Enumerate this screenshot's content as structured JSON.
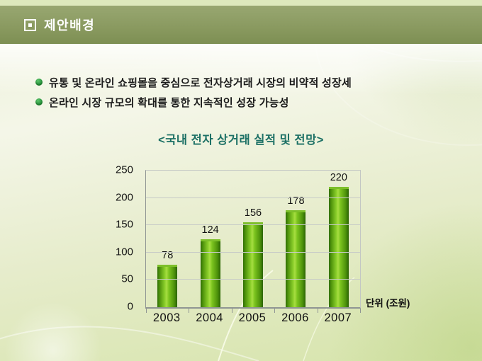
{
  "header": {
    "title": "제안배경"
  },
  "bullets": [
    "유통 및 온라인 쇼핑몰을 중심으로 전자상거래 시장의 비약적 성장세",
    "온라인 시장 규모의 확대를 통한 지속적인 성장 가능성"
  ],
  "chart_data": {
    "type": "bar",
    "title": "<국내 전자 상거래 실적 및 전망>",
    "categories": [
      "2003",
      "2004",
      "2005",
      "2006",
      "2007"
    ],
    "values": [
      78,
      124,
      156,
      178,
      220
    ],
    "unit_label": "단위 (조원)",
    "xlabel": "",
    "ylabel": "",
    "ylim": [
      0,
      250
    ],
    "yticks": [
      0,
      50,
      100,
      150,
      200,
      250
    ],
    "grid": true,
    "legend": "none",
    "bar_color": "#6cb414"
  },
  "colors": {
    "header_band": "#89995f",
    "top_strip": "#dde9bd",
    "header_text": "#ffffff",
    "bullet_dot": "#2e9a43",
    "bullet_text": "#1c1c1c",
    "chart_title": "#1c7065",
    "bar_gradient": [
      "#2f6e05",
      "#a7de41",
      "#2b6403"
    ],
    "gridline": "#c7cbc7",
    "axis": "#8f9593",
    "background_light": "#f4f6e8",
    "background_green": "#d6e4ab"
  }
}
